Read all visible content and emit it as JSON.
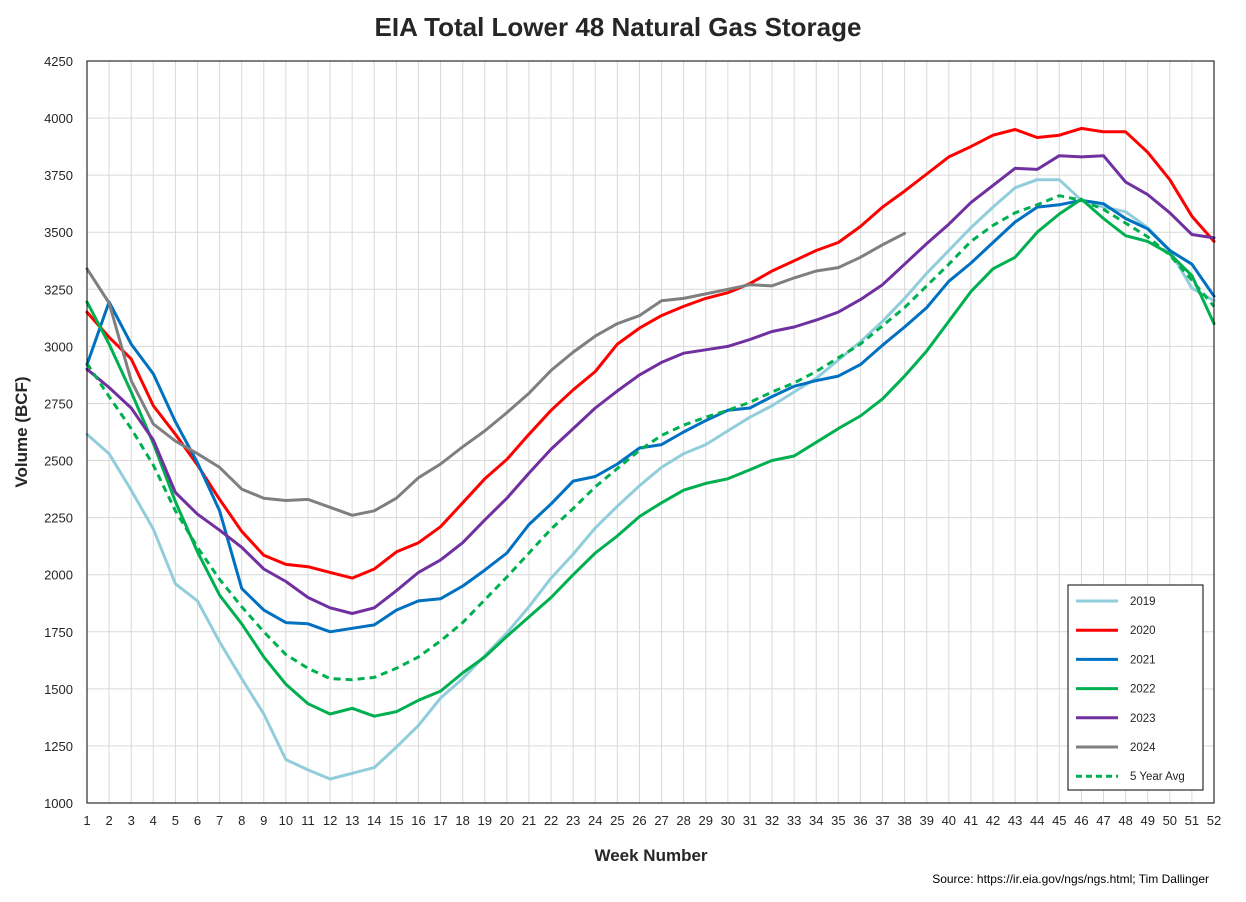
{
  "chart_data": {
    "type": "line",
    "title": "EIA Total Lower 48 Natural Gas Storage",
    "xlabel": "Week Number",
    "ylabel": "Volume (BCF)",
    "source": "Source: https://ir.eia.gov/ngs/ngs.html; Tim Dallinger",
    "xlim": [
      1,
      52
    ],
    "ylim": [
      1000,
      4250
    ],
    "ytick_step": 250,
    "grid": true,
    "legend_position": "bottom-right",
    "x": [
      1,
      2,
      3,
      4,
      5,
      6,
      7,
      8,
      9,
      10,
      11,
      12,
      13,
      14,
      15,
      16,
      17,
      18,
      19,
      20,
      21,
      22,
      23,
      24,
      25,
      26,
      27,
      28,
      29,
      30,
      31,
      32,
      33,
      34,
      35,
      36,
      37,
      38,
      39,
      40,
      41,
      42,
      43,
      44,
      45,
      46,
      47,
      48,
      49,
      50,
      51,
      52
    ],
    "series": [
      {
        "name": "2019",
        "color": "#92cddc",
        "dashed": false,
        "values": [
          2615,
          2530,
          2370,
          2200,
          1960,
          1885,
          1705,
          1545,
          1390,
          1190,
          1145,
          1105,
          1130,
          1155,
          1245,
          1340,
          1460,
          1545,
          1645,
          1745,
          1860,
          1985,
          2090,
          2205,
          2300,
          2390,
          2470,
          2530,
          2570,
          2630,
          2690,
          2740,
          2800,
          2860,
          2940,
          3020,
          3110,
          3210,
          3320,
          3420,
          3520,
          3610,
          3695,
          3730,
          3730,
          3640,
          3610,
          3590,
          3520,
          3420,
          3255,
          3200
        ]
      },
      {
        "name": "2020",
        "color": "#ff0000",
        "dashed": false,
        "values": [
          3150,
          3040,
          2945,
          2740,
          2615,
          2480,
          2330,
          2190,
          2085,
          2045,
          2035,
          2010,
          1985,
          2025,
          2100,
          2140,
          2210,
          2315,
          2420,
          2505,
          2615,
          2720,
          2810,
          2890,
          3010,
          3080,
          3135,
          3175,
          3210,
          3235,
          3275,
          3330,
          3375,
          3420,
          3455,
          3525,
          3610,
          3680,
          3755,
          3830,
          3875,
          3925,
          3950,
          3915,
          3925,
          3955,
          3940,
          3940,
          3850,
          3730,
          3570,
          3460
        ]
      },
      {
        "name": "2021",
        "color": "#0070c0",
        "dashed": false,
        "values": [
          2920,
          3195,
          3010,
          2880,
          2670,
          2490,
          2280,
          1940,
          1845,
          1790,
          1785,
          1750,
          1765,
          1780,
          1845,
          1885,
          1895,
          1950,
          2020,
          2095,
          2220,
          2310,
          2410,
          2430,
          2485,
          2555,
          2570,
          2625,
          2675,
          2720,
          2730,
          2780,
          2825,
          2850,
          2870,
          2920,
          3005,
          3085,
          3170,
          3285,
          3365,
          3455,
          3545,
          3610,
          3620,
          3640,
          3625,
          3560,
          3515,
          3420,
          3360,
          3220
        ]
      },
      {
        "name": "2022",
        "color": "#00b050",
        "dashed": false,
        "values": [
          3195,
          3010,
          2800,
          2575,
          2320,
          2100,
          1910,
          1785,
          1640,
          1520,
          1435,
          1390,
          1415,
          1380,
          1400,
          1450,
          1490,
          1570,
          1640,
          1730,
          1815,
          1900,
          2000,
          2095,
          2170,
          2255,
          2315,
          2370,
          2400,
          2420,
          2460,
          2500,
          2520,
          2580,
          2640,
          2695,
          2770,
          2870,
          2980,
          3110,
          3240,
          3340,
          3390,
          3500,
          3580,
          3645,
          3560,
          3485,
          3460,
          3405,
          3310,
          3100
        ]
      },
      {
        "name": "2023",
        "color": "#7030a0",
        "dashed": false,
        "values": [
          2900,
          2820,
          2730,
          2590,
          2360,
          2265,
          2195,
          2120,
          2025,
          1970,
          1900,
          1855,
          1830,
          1855,
          1930,
          2010,
          2065,
          2140,
          2240,
          2335,
          2445,
          2550,
          2640,
          2730,
          2805,
          2875,
          2930,
          2970,
          2985,
          3000,
          3030,
          3065,
          3085,
          3115,
          3150,
          3205,
          3270,
          3360,
          3450,
          3535,
          3630,
          3705,
          3780,
          3775,
          3835,
          3830,
          3835,
          3720,
          3665,
          3585,
          3490,
          3475
        ]
      },
      {
        "name": "2024",
        "color": "#7f7f7f",
        "dashed": false,
        "values": [
          3340,
          3190,
          2850,
          2660,
          2585,
          2530,
          2470,
          2375,
          2335,
          2325,
          2330,
          2295,
          2260,
          2280,
          2335,
          2425,
          2485,
          2560,
          2630,
          2710,
          2795,
          2895,
          2975,
          3045,
          3100,
          3135,
          3200,
          3210,
          3230,
          3250,
          3270,
          3265,
          3300,
          3330,
          3345,
          3390,
          3445,
          3495,
          null,
          null,
          null,
          null,
          null,
          null,
          null,
          null,
          null,
          null,
          null,
          null,
          null,
          null
        ]
      },
      {
        "name": "5 Year Avg",
        "color": "#00b050",
        "dashed": true,
        "values": [
          2925,
          2780,
          2640,
          2480,
          2280,
          2120,
          1980,
          1860,
          1750,
          1650,
          1590,
          1545,
          1540,
          1550,
          1590,
          1640,
          1710,
          1790,
          1890,
          1990,
          2095,
          2200,
          2290,
          2385,
          2465,
          2545,
          2610,
          2655,
          2690,
          2720,
          2755,
          2800,
          2840,
          2890,
          2950,
          3010,
          3090,
          3170,
          3265,
          3360,
          3460,
          3530,
          3585,
          3620,
          3660,
          3640,
          3600,
          3540,
          3480,
          3400,
          3290,
          3175
        ]
      }
    ]
  }
}
